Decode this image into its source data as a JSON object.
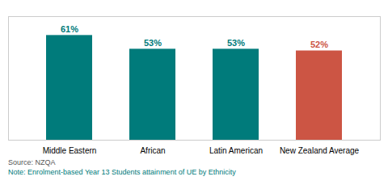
{
  "chart_data": {
    "type": "bar",
    "categories": [
      "Middle Eastern",
      "African",
      "Latin American",
      "New Zealand Average"
    ],
    "values": [
      61,
      53,
      53,
      52
    ],
    "value_labels": [
      "61%",
      "53%",
      "53%",
      "52%"
    ],
    "colors": [
      "#007b7b",
      "#007b7b",
      "#007b7b",
      "#cc5544"
    ],
    "ylim": [
      0,
      72
    ],
    "grid": false,
    "data_labels": true,
    "tick_labels": "x",
    "annotations": [
      "Source: NZQA",
      "Note: Enrolment-based Year 13 Students attainment of UE by Ethnicity"
    ]
  }
}
